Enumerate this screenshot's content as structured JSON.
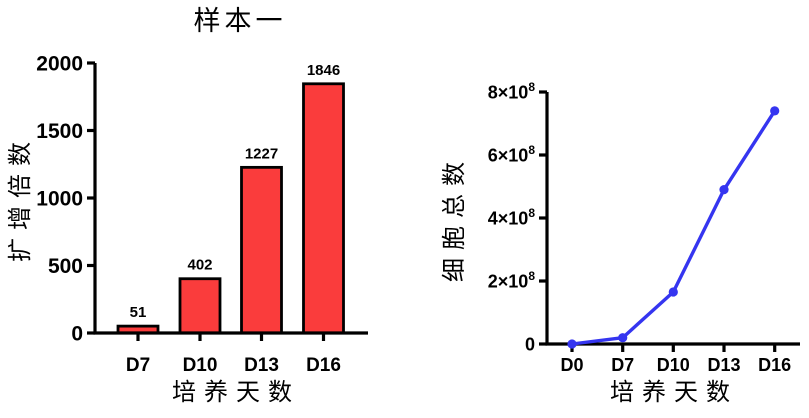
{
  "figure": {
    "background": "#ffffff",
    "axis_color": "#000000"
  },
  "chart_data": [
    {
      "type": "bar",
      "title": "样本一",
      "xlabel": "培养天数",
      "ylabel": "扩增倍数",
      "categories": [
        "D7",
        "D10",
        "D13",
        "D16"
      ],
      "values": [
        51,
        402,
        1227,
        1846
      ],
      "bar_labels": [
        "51",
        "402",
        "1227",
        "1846"
      ],
      "ylim": [
        0,
        2000
      ],
      "yticks": [
        0,
        500,
        1000,
        1500,
        2000
      ],
      "ytick_labels": [
        "0",
        "500",
        "1000",
        "1500",
        "2000"
      ],
      "bar_color": "#FA3C3C",
      "bar_border_color": "#000000",
      "grid": false,
      "legend": "none"
    },
    {
      "type": "line",
      "title": "",
      "xlabel": "培养天数",
      "ylabel": "细胞总数",
      "categories": [
        "D0",
        "D7",
        "D10",
        "D13",
        "D16"
      ],
      "values": [
        0,
        20000000,
        165000000,
        490000000,
        740000000
      ],
      "ylim": [
        0,
        800000000
      ],
      "yticks": [
        0,
        200000000,
        400000000,
        600000000,
        800000000
      ],
      "ytick_labels": [
        "0",
        "2×10^8",
        "4×10^8",
        "6×10^8",
        "8×10^8"
      ],
      "line_color": "#3535F0",
      "marker": "circle",
      "grid": false,
      "legend": "none"
    }
  ]
}
